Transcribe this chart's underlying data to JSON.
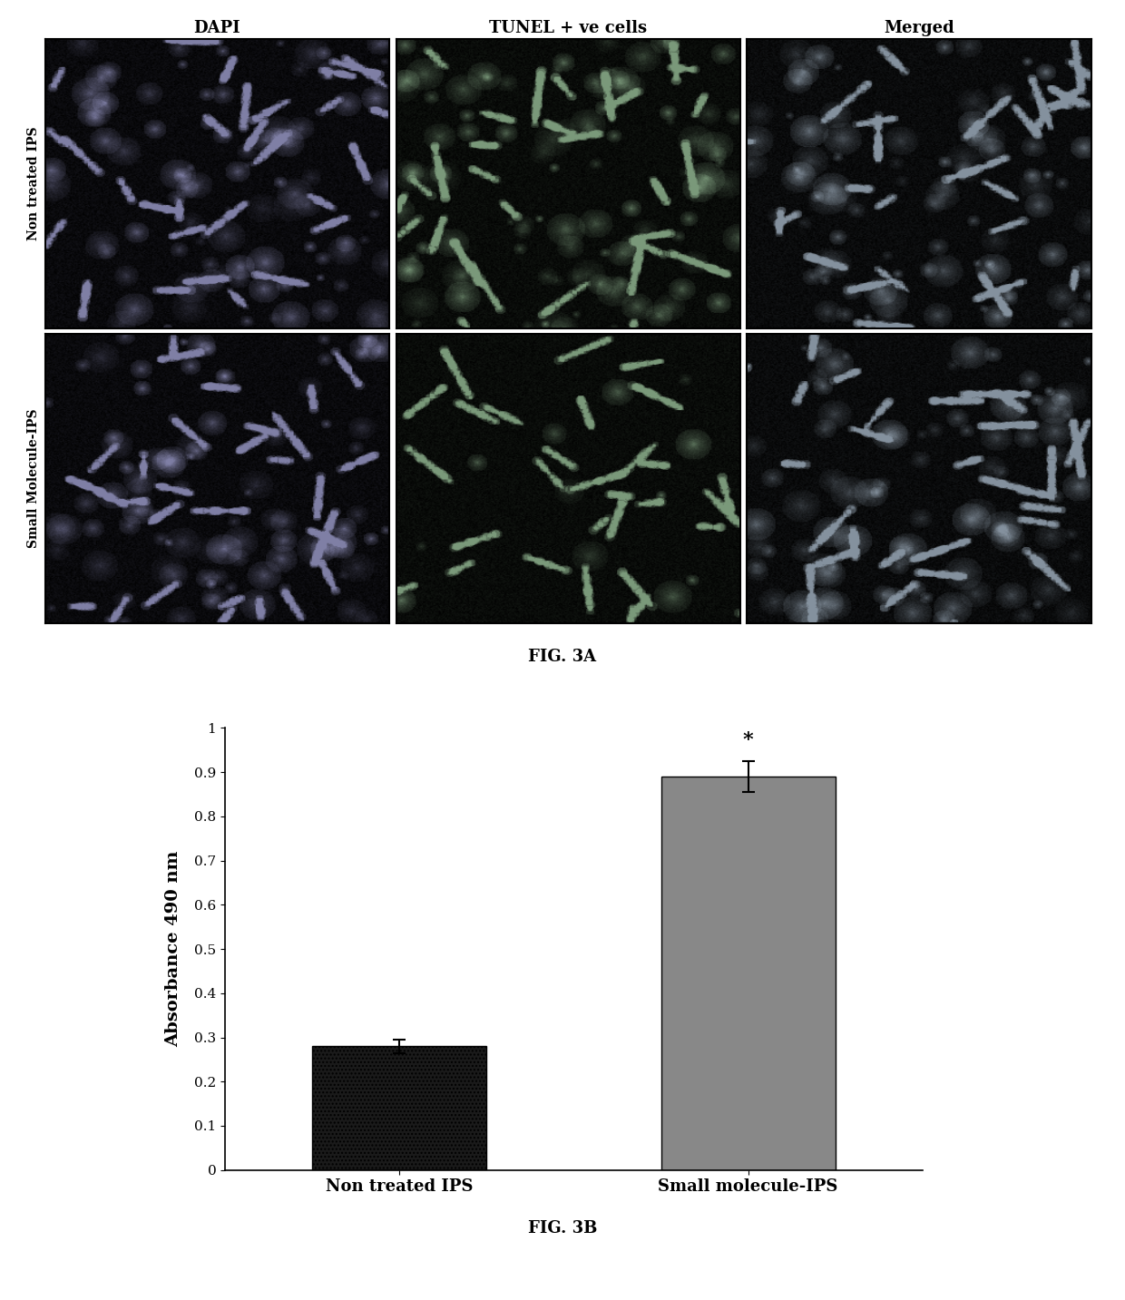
{
  "fig3a_col_labels": [
    "DAPI",
    "TUNEL + ve cells",
    "Merged"
  ],
  "fig3a_row_labels": [
    "Non treated IPS",
    "Small Molecule-IPS"
  ],
  "fig3a_caption": "FIG. 3A",
  "fig3b_caption": "FIG. 3B",
  "bar_categories": [
    "Non treated IPS",
    "Small molecule-IPS"
  ],
  "bar_values": [
    0.28,
    0.89
  ],
  "bar_errors": [
    0.015,
    0.035
  ],
  "bar_colors": [
    "#1a1a1a",
    "#888888"
  ],
  "bar_hatches": [
    "....",
    ""
  ],
  "ylabel": "Absorbance 490 nm",
  "ylim": [
    0,
    1.0
  ],
  "yticks": [
    0,
    0.1,
    0.2,
    0.3,
    0.4,
    0.5,
    0.6,
    0.7,
    0.8,
    0.9,
    1
  ],
  "significance_label": "*",
  "background_color": "#ffffff",
  "image_noise_seed": 42
}
